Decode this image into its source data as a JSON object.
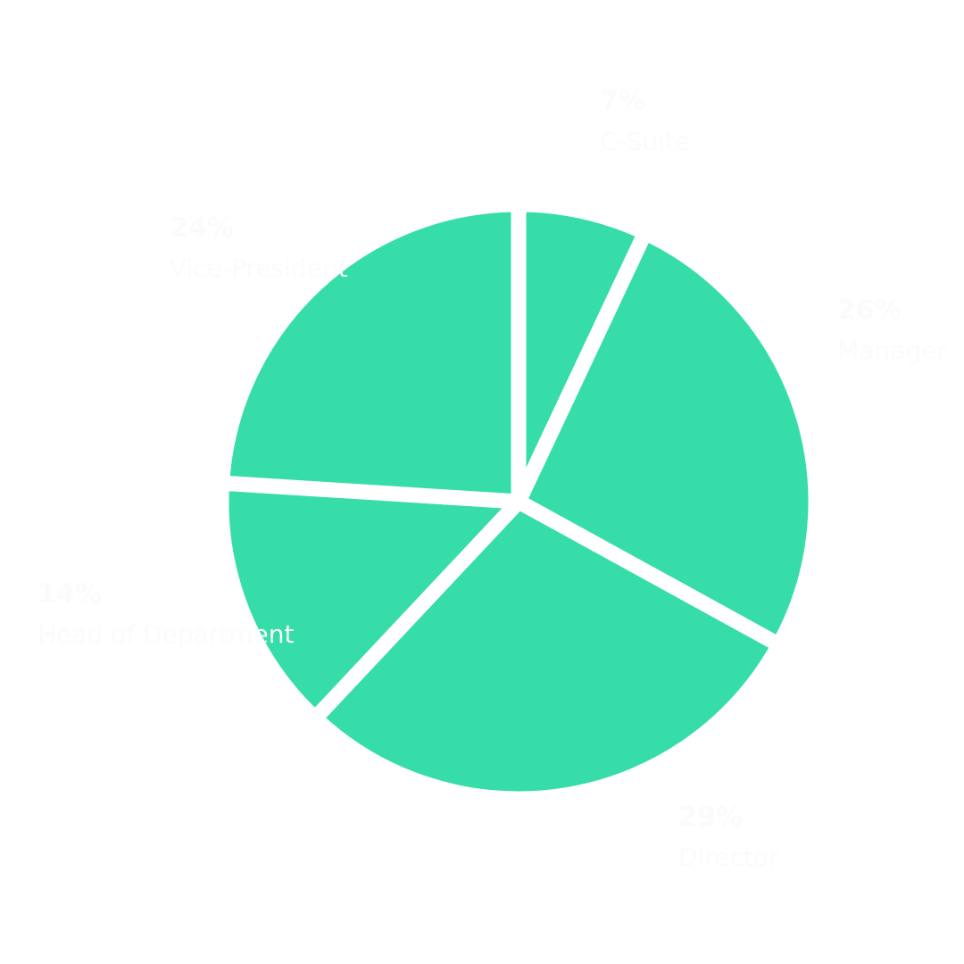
{
  "chart_data": {
    "type": "pie",
    "categories": [
      "C-Suite",
      "Manager",
      "Director",
      "Head of Department",
      "Vice-President"
    ],
    "values": [
      7,
      26,
      29,
      14,
      24
    ],
    "data_labels": [
      "7%",
      "26%",
      "29%",
      "14%",
      "24%"
    ],
    "start_angle": "top, clockwise",
    "slice_color": "#36dda8",
    "separator_color": "#ffffff",
    "label_color": "#fcfbfc"
  }
}
